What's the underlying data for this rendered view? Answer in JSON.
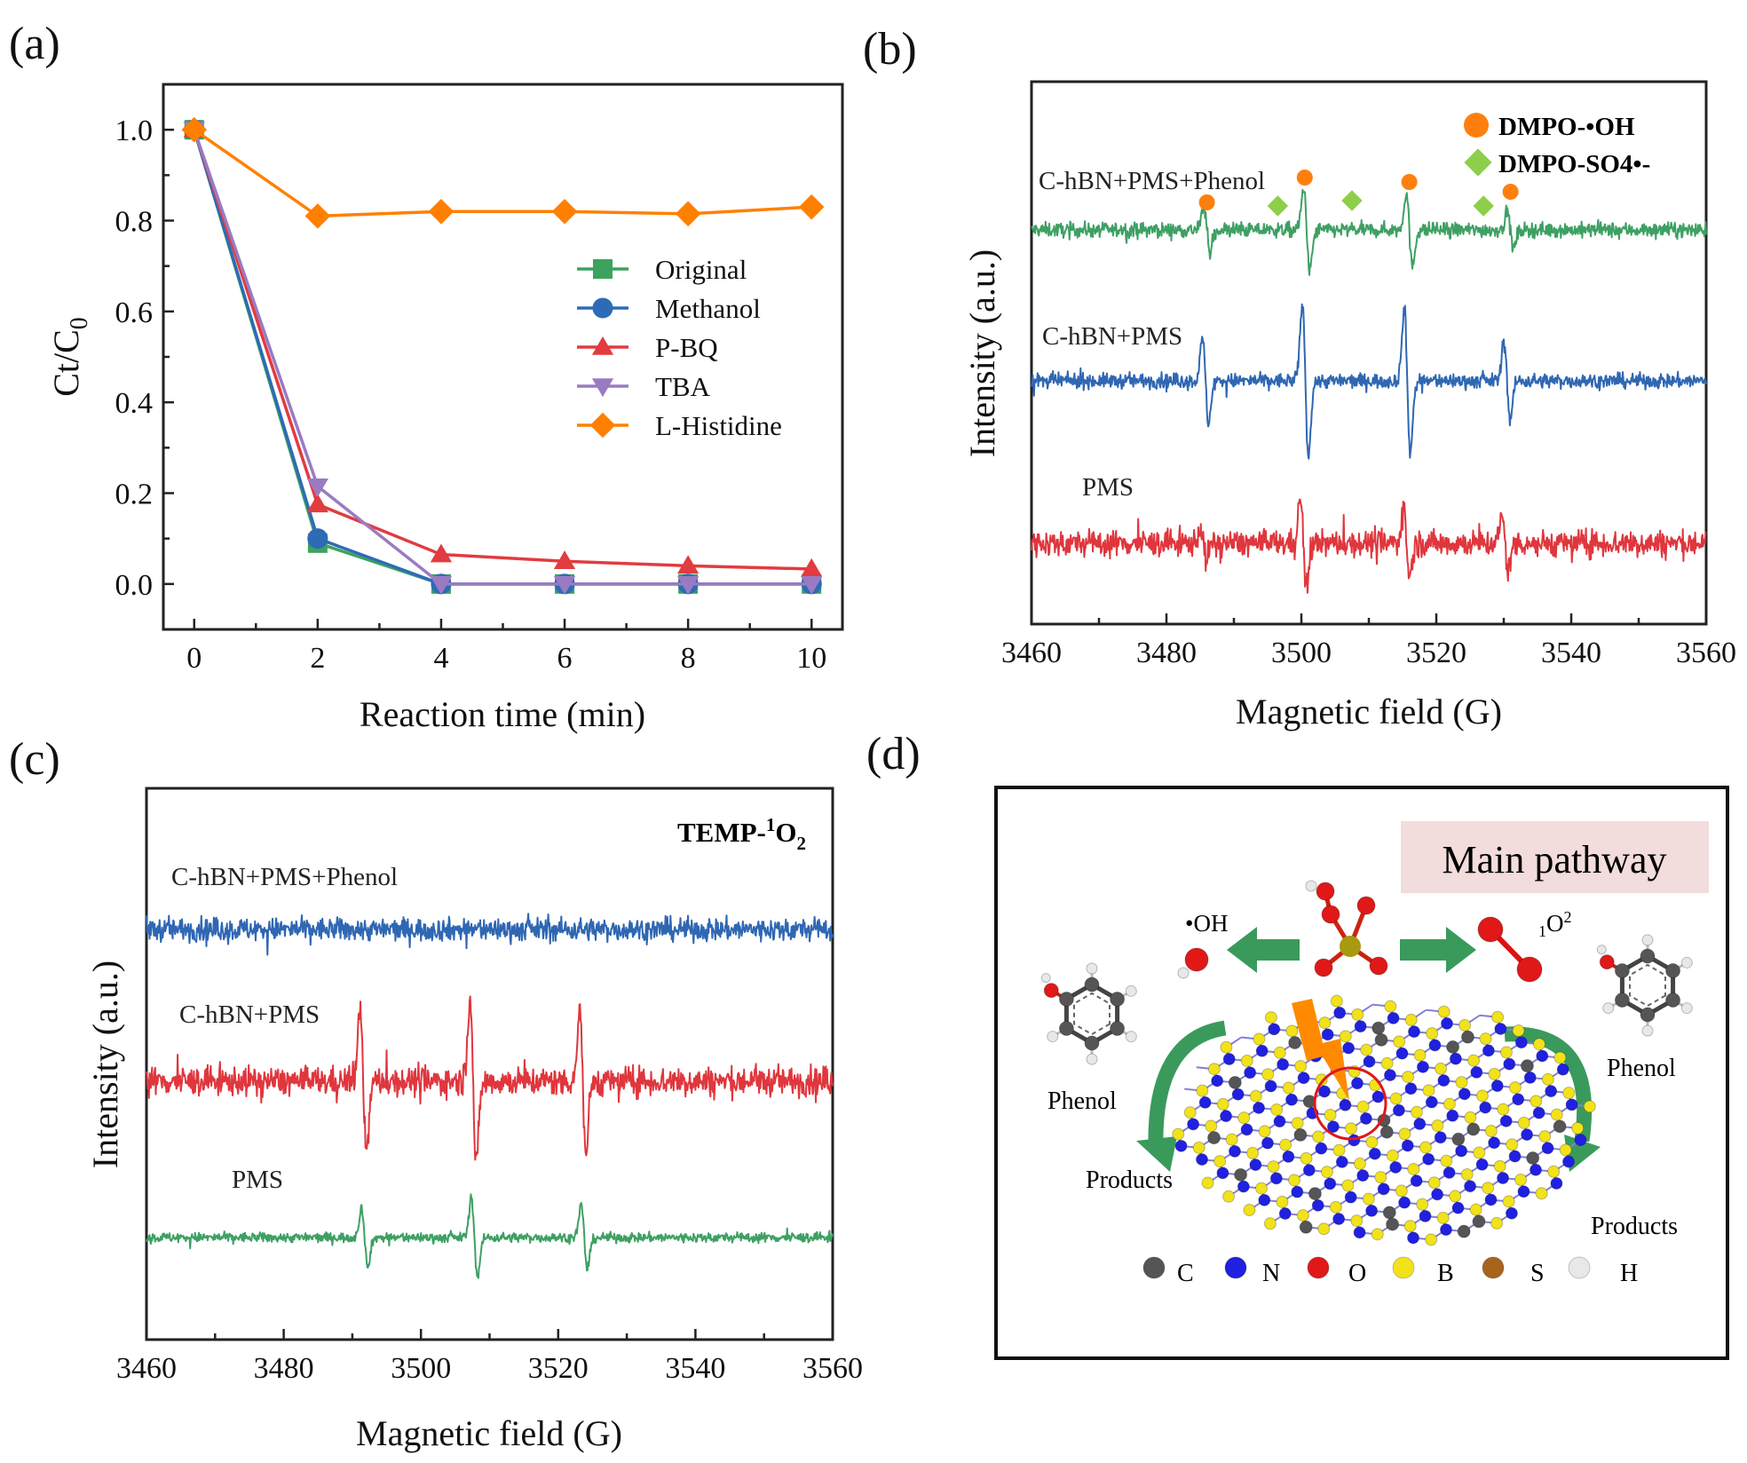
{
  "panel_labels": [
    "(a)",
    "(b)",
    "(c)",
    "(d)"
  ],
  "chart_data": [
    {
      "type": "line",
      "panel": "(a)",
      "xlabel": "Reaction time (min)",
      "ylabel_main": "Ct/C",
      "ylabel_sub": "0",
      "xlim": [
        -0.5,
        10.5
      ],
      "ylim": [
        -0.1,
        1.1
      ],
      "xticks": [
        0,
        2,
        4,
        6,
        8,
        10
      ],
      "yticks": [
        "0.0",
        "0.2",
        "0.4",
        "0.6",
        "0.8",
        "1.0"
      ],
      "x": [
        0,
        2,
        4,
        6,
        8,
        10
      ],
      "legend_position": "center-right",
      "series": [
        {
          "name": "Original",
          "marker": "square",
          "color": "#3ca35e",
          "values": [
            1.0,
            0.09,
            0.0,
            0.0,
            0.0,
            0.0
          ]
        },
        {
          "name": "Methanol",
          "marker": "circle",
          "color": "#2e6bb7",
          "values": [
            1.0,
            0.1,
            0.0,
            0.0,
            0.0,
            0.0
          ]
        },
        {
          "name": "P-BQ",
          "marker": "triangle-up",
          "color": "#e23b40",
          "values": [
            1.0,
            0.175,
            0.065,
            0.05,
            0.04,
            0.033
          ]
        },
        {
          "name": "TBA",
          "marker": "triangle-down",
          "color": "#9a7bc2",
          "values": [
            1.0,
            0.215,
            0.0,
            0.0,
            0.0,
            0.0
          ]
        },
        {
          "name": "L-Histidine",
          "marker": "diamond",
          "color": "#ff8000",
          "values": [
            1.0,
            0.81,
            0.82,
            0.82,
            0.815,
            0.83
          ]
        }
      ]
    },
    {
      "type": "line",
      "panel": "(b)",
      "xlabel": "Magnetic field (G)",
      "ylabel": "Intensity (a.u.)",
      "xlim": [
        3460,
        3560
      ],
      "xticks": [
        3460,
        3480,
        3500,
        3520,
        3540,
        3560
      ],
      "legend": [
        {
          "name": "DMPO-•OH",
          "marker": "circle",
          "color": "#ff7f0e"
        },
        {
          "name": "DMPO-SO4•-",
          "marker": "diamond",
          "color": "#8dcf4a"
        }
      ],
      "annotations": {
        "oh_peaks": [
          3486,
          3500.5,
          3516,
          3531
        ],
        "so4_peaks": [
          3496.5,
          3507.5,
          3527
        ]
      },
      "series": [
        {
          "name": "C-hBN+PMS+Phenol",
          "color": "#3ea063",
          "noise": 0.18,
          "peaks": [
            {
              "field": 3486,
              "intensity": 0.3
            },
            {
              "field": 3500.8,
              "intensity": 0.55
            },
            {
              "field": 3516,
              "intensity": 0.5
            },
            {
              "field": 3531,
              "intensity": 0.25
            }
          ]
        },
        {
          "name": "C-hBN+PMS",
          "color": "#2f67b3",
          "noise": 0.18,
          "peaks": [
            {
              "field": 3485.8,
              "intensity": 0.55
            },
            {
              "field": 3500.6,
              "intensity": 1.0
            },
            {
              "field": 3515.7,
              "intensity": 0.95
            },
            {
              "field": 3530.5,
              "intensity": 0.5
            }
          ]
        },
        {
          "name": "PMS",
          "color": "#e0363d",
          "noise": 0.32,
          "peaks": [
            {
              "field": 3485.5,
              "intensity": 0.2
            },
            {
              "field": 3500.3,
              "intensity": 0.6
            },
            {
              "field": 3515.6,
              "intensity": 0.45
            },
            {
              "field": 3530.2,
              "intensity": 0.35
            }
          ]
        }
      ]
    },
    {
      "type": "line",
      "panel": "(c)",
      "xlabel": "Magnetic field (G)",
      "ylabel": "Intensity (a.u.)",
      "xlim": [
        3460,
        3560
      ],
      "xticks": [
        3460,
        3480,
        3500,
        3520,
        3540,
        3560
      ],
      "annotation_parts": {
        "prefix": "TEMP-",
        "sup": "1",
        "main": "O",
        "sub": "2"
      },
      "series": [
        {
          "name": "C-hBN+PMS+Phenol",
          "color": "#2f67b3",
          "noise": 0.28,
          "peaks": []
        },
        {
          "name": "C-hBN+PMS",
          "color": "#e0363d",
          "noise": 0.35,
          "peaks": [
            {
              "field": 3491.6,
              "intensity": 0.85
            },
            {
              "field": 3507.6,
              "intensity": 1.0
            },
            {
              "field": 3523.6,
              "intensity": 0.85
            }
          ]
        },
        {
          "name": "PMS",
          "color": "#3ea063",
          "noise": 0.12,
          "peaks": [
            {
              "field": 3491.8,
              "intensity": 0.35
            },
            {
              "field": 3507.8,
              "intensity": 0.45
            },
            {
              "field": 3523.8,
              "intensity": 0.38
            }
          ]
        }
      ]
    }
  ],
  "diagram": {
    "title": "Main pathway",
    "oh_label": "•OH",
    "singlet_oxygen": {
      "sub": "1",
      "main": "O",
      "sup": "2"
    },
    "phenol_left": "Phenol",
    "phenol_right": "Phenol",
    "products_left": "Products",
    "products_right": "Products",
    "legend": [
      {
        "symbol": "C",
        "color": "#555555"
      },
      {
        "symbol": "N",
        "color": "#2020e0"
      },
      {
        "symbol": "O",
        "color": "#e01818"
      },
      {
        "symbol": "B",
        "color": "#f2e21a"
      },
      {
        "symbol": "S",
        "color": "#a8641c"
      },
      {
        "symbol": "H",
        "color": "#e8e8e8"
      }
    ],
    "colors": {
      "arrow": "#3a9a5c",
      "title_bg": "#f2dcdc",
      "bolt": "#ff8a00",
      "highlight": "#e01818"
    }
  }
}
